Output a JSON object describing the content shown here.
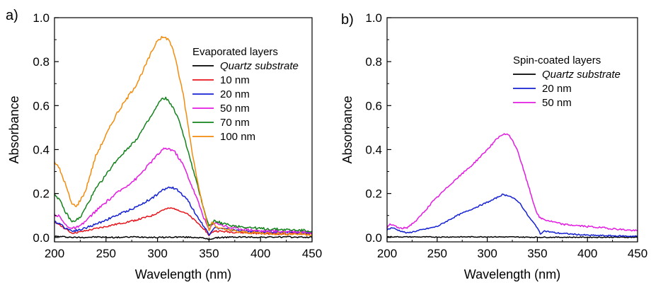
{
  "chart_data": [
    {
      "panel_label": "a)",
      "type": "line",
      "xlabel": "Wavelength (nm)",
      "ylabel": "Absorbance",
      "xlim": [
        200,
        450
      ],
      "ylim": [
        -0.02,
        1.0
      ],
      "xticks": [
        "200",
        "250",
        "300",
        "350",
        "400",
        "450"
      ],
      "yticks": [
        "0.0",
        "0.2",
        "0.4",
        "0.6",
        "0.8",
        "1.0"
      ],
      "legend_title": "Evaporated layers",
      "legend_position": "top-right",
      "series": [
        {
          "name": "Quartz substrate",
          "italic": true,
          "color": "#000000",
          "jitter": 0.003,
          "points": [
            [
              200,
              0.005
            ],
            [
              220,
              0.0
            ],
            [
              240,
              0.002
            ],
            [
              260,
              0.0
            ],
            [
              280,
              0.003
            ],
            [
              300,
              0.0
            ],
            [
              320,
              0.002
            ],
            [
              340,
              0.0
            ],
            [
              350,
              -0.008
            ],
            [
              360,
              0.0
            ],
            [
              380,
              0.002
            ],
            [
              400,
              0.001
            ],
            [
              420,
              0.002
            ],
            [
              450,
              0.001
            ]
          ]
        },
        {
          "name": "10 nm",
          "color": "#e8141c",
          "jitter": 0.004,
          "points": [
            [
              200,
              0.065
            ],
            [
              205,
              0.06
            ],
            [
              210,
              0.04
            ],
            [
              217,
              0.02
            ],
            [
              225,
              0.025
            ],
            [
              240,
              0.04
            ],
            [
              260,
              0.06
            ],
            [
              280,
              0.08
            ],
            [
              295,
              0.1
            ],
            [
              305,
              0.125
            ],
            [
              312,
              0.133
            ],
            [
              318,
              0.13
            ],
            [
              328,
              0.11
            ],
            [
              338,
              0.07
            ],
            [
              345,
              0.04
            ],
            [
              350,
              0.01
            ],
            [
              355,
              0.03
            ],
            [
              370,
              0.025
            ],
            [
              400,
              0.018
            ],
            [
              450,
              0.015
            ]
          ]
        },
        {
          "name": "20 nm",
          "color": "#1420d2",
          "jitter": 0.005,
          "points": [
            [
              200,
              0.07
            ],
            [
              205,
              0.065
            ],
            [
              210,
              0.045
            ],
            [
              217,
              0.03
            ],
            [
              225,
              0.035
            ],
            [
              240,
              0.06
            ],
            [
              260,
              0.1
            ],
            [
              280,
              0.14
            ],
            [
              295,
              0.18
            ],
            [
              305,
              0.215
            ],
            [
              312,
              0.23
            ],
            [
              318,
              0.22
            ],
            [
              328,
              0.18
            ],
            [
              338,
              0.1
            ],
            [
              345,
              0.05
            ],
            [
              350,
              0.015
            ],
            [
              355,
              0.045
            ],
            [
              370,
              0.035
            ],
            [
              400,
              0.025
            ],
            [
              450,
              0.02
            ]
          ]
        },
        {
          "name": "50 nm",
          "color": "#e21ce0",
          "jitter": 0.006,
          "points": [
            [
              200,
              0.105
            ],
            [
              205,
              0.095
            ],
            [
              210,
              0.06
            ],
            [
              217,
              0.04
            ],
            [
              225,
              0.05
            ],
            [
              240,
              0.12
            ],
            [
              260,
              0.2
            ],
            [
              280,
              0.27
            ],
            [
              295,
              0.35
            ],
            [
              305,
              0.4
            ],
            [
              310,
              0.405
            ],
            [
              316,
              0.395
            ],
            [
              325,
              0.33
            ],
            [
              338,
              0.18
            ],
            [
              345,
              0.09
            ],
            [
              350,
              0.035
            ],
            [
              355,
              0.07
            ],
            [
              370,
              0.045
            ],
            [
              400,
              0.03
            ],
            [
              450,
              0.025
            ]
          ]
        },
        {
          "name": "70 nm",
          "color": "#14821c",
          "jitter": 0.006,
          "points": [
            [
              200,
              0.2
            ],
            [
              205,
              0.17
            ],
            [
              210,
              0.12
            ],
            [
              217,
              0.07
            ],
            [
              225,
              0.09
            ],
            [
              240,
              0.22
            ],
            [
              260,
              0.35
            ],
            [
              280,
              0.45
            ],
            [
              295,
              0.56
            ],
            [
              303,
              0.625
            ],
            [
              308,
              0.635
            ],
            [
              314,
              0.6
            ],
            [
              322,
              0.52
            ],
            [
              335,
              0.3
            ],
            [
              345,
              0.13
            ],
            [
              350,
              0.05
            ],
            [
              355,
              0.075
            ],
            [
              370,
              0.055
            ],
            [
              400,
              0.04
            ],
            [
              450,
              0.03
            ]
          ]
        },
        {
          "name": "100 nm",
          "color": "#f28c0f",
          "jitter": 0.007,
          "points": [
            [
              200,
              0.345
            ],
            [
              205,
              0.31
            ],
            [
              210,
              0.25
            ],
            [
              217,
              0.15
            ],
            [
              222,
              0.145
            ],
            [
              230,
              0.21
            ],
            [
              240,
              0.37
            ],
            [
              260,
              0.56
            ],
            [
              280,
              0.7
            ],
            [
              292,
              0.82
            ],
            [
              300,
              0.9
            ],
            [
              305,
              0.91
            ],
            [
              310,
              0.905
            ],
            [
              315,
              0.86
            ],
            [
              325,
              0.65
            ],
            [
              335,
              0.35
            ],
            [
              345,
              0.12
            ],
            [
              350,
              0.03
            ],
            [
              353,
              0.07
            ],
            [
              360,
              0.04
            ],
            [
              380,
              0.025
            ],
            [
              400,
              0.02
            ],
            [
              450,
              0.015
            ]
          ]
        }
      ]
    },
    {
      "panel_label": "b)",
      "type": "line",
      "xlabel": "Wavelength (nm)",
      "ylabel": "Absorbance",
      "xlim": [
        200,
        450
      ],
      "ylim": [
        -0.02,
        1.0
      ],
      "xticks": [
        "200",
        "250",
        "300",
        "350",
        "400",
        "450"
      ],
      "yticks": [
        "0.0",
        "0.2",
        "0.4",
        "0.6",
        "0.8",
        "1.0"
      ],
      "legend_title": "Spin-coated layers",
      "legend_position": "top-right",
      "series": [
        {
          "name": "Quartz substrate",
          "italic": true,
          "color": "#000000",
          "jitter": 0.002,
          "points": [
            [
              200,
              0.003
            ],
            [
              250,
              0.002
            ],
            [
              300,
              0.003
            ],
            [
              350,
              0.001
            ],
            [
              400,
              0.001
            ],
            [
              450,
              0.001
            ]
          ]
        },
        {
          "name": "20 nm",
          "color": "#1420d2",
          "jitter": 0.003,
          "points": [
            [
              200,
              0.035
            ],
            [
              205,
              0.045
            ],
            [
              210,
              0.035
            ],
            [
              220,
              0.02
            ],
            [
              230,
              0.03
            ],
            [
              250,
              0.05
            ],
            [
              270,
              0.1
            ],
            [
              290,
              0.14
            ],
            [
              305,
              0.17
            ],
            [
              315,
              0.195
            ],
            [
              322,
              0.19
            ],
            [
              332,
              0.16
            ],
            [
              342,
              0.09
            ],
            [
              350,
              0.045
            ],
            [
              353,
              0.015
            ],
            [
              356,
              0.03
            ],
            [
              370,
              0.02
            ],
            [
              400,
              0.01
            ],
            [
              450,
              0.005
            ]
          ]
        },
        {
          "name": "50 nm",
          "color": "#e21ce0",
          "jitter": 0.004,
          "points": [
            [
              200,
              0.045
            ],
            [
              203,
              0.058
            ],
            [
              207,
              0.055
            ],
            [
              213,
              0.04
            ],
            [
              220,
              0.045
            ],
            [
              230,
              0.08
            ],
            [
              245,
              0.16
            ],
            [
              265,
              0.25
            ],
            [
              285,
              0.33
            ],
            [
              300,
              0.4
            ],
            [
              310,
              0.45
            ],
            [
              316,
              0.47
            ],
            [
              322,
              0.465
            ],
            [
              330,
              0.4
            ],
            [
              340,
              0.25
            ],
            [
              348,
              0.13
            ],
            [
              352,
              0.09
            ],
            [
              358,
              0.08
            ],
            [
              375,
              0.06
            ],
            [
              400,
              0.05
            ],
            [
              425,
              0.04
            ],
            [
              450,
              0.03
            ]
          ]
        }
      ]
    }
  ]
}
